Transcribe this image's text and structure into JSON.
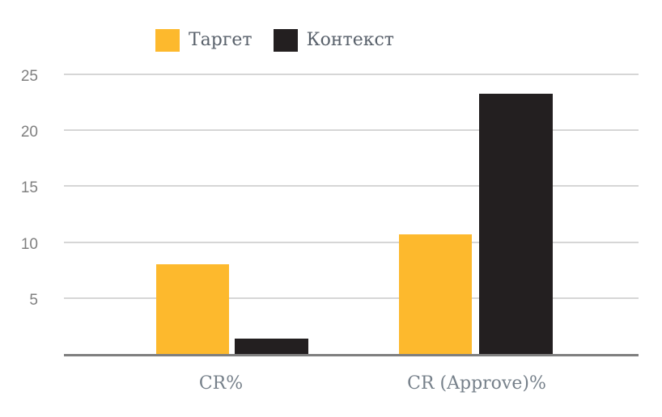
{
  "chart_data": {
    "type": "bar",
    "title": "",
    "categories": [
      "CR%",
      "CR (Approve)%"
    ],
    "series": [
      {
        "name": "Таргет",
        "color": "#FDB92D",
        "values": [
          8,
          10.7
        ]
      },
      {
        "name": "Контекст",
        "color": "#231F20",
        "values": [
          1.4,
          23.3
        ]
      }
    ],
    "ylim": [
      0,
      25
    ],
    "yticks": [
      5,
      10,
      15,
      20,
      25
    ],
    "grid": true,
    "legend_position": "top",
    "xlabel": "",
    "ylabel": ""
  },
  "colors": {
    "background": "#FFFFFF",
    "bar_target": "#FDB92D",
    "bar_context": "#231F20",
    "gridline": "#D6D6D6",
    "axis_line": "#7F7F7F",
    "y_tick_text": "#7F7F7F",
    "x_tick_text": "#76808A",
    "legend_text": "#59616B"
  }
}
